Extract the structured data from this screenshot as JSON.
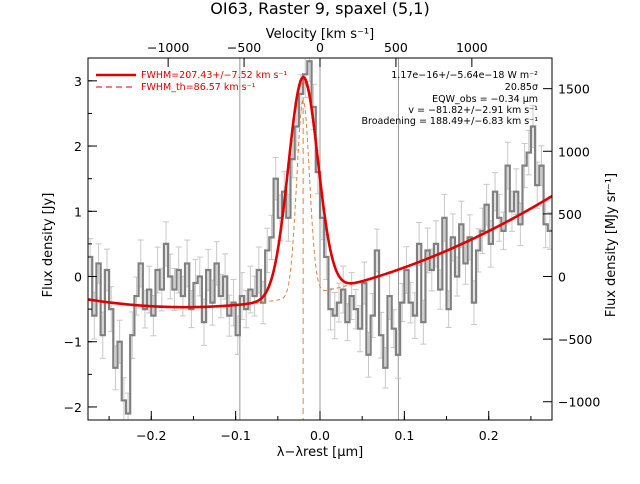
{
  "chart_data": {
    "type": "line",
    "title": "OI63, Raster 9, spaxel (5,1)",
    "xlabel": "λ−λrest [μm]",
    "ylabel": "Flux density [Jy]",
    "top_axis_label": "Velocity [km s⁻¹]",
    "right_axis_label": "Flux density [MJy sr⁻¹]",
    "xlim": [
      -0.275,
      0.275
    ],
    "ylim": [
      -2.2,
      3.35
    ],
    "x_ticks": [
      -0.2,
      -0.1,
      0.0,
      0.1,
      0.2
    ],
    "x_tick_labels": [
      "−0.2",
      "−0.1",
      "0.0",
      "0.1",
      "0.2"
    ],
    "y_ticks": [
      -2,
      -1,
      0,
      1,
      2,
      3
    ],
    "y_tick_labels": [
      "−2",
      "−1",
      "0",
      "1",
      "2",
      "3"
    ],
    "top_ticks": [
      -1000,
      -500,
      0,
      500,
      1000
    ],
    "top_tick_labels": [
      "−1000",
      "−500",
      "0",
      "500",
      "1000"
    ],
    "right_ticks": [
      -1000,
      -500,
      0,
      500,
      1000,
      1500
    ],
    "right_tick_labels": [
      "−1000",
      "−500",
      "0",
      "500",
      "1000",
      "1500"
    ],
    "vertical_lines_x": [
      -0.095,
      0.0,
      0.093
    ],
    "line_center_x": -0.02,
    "legend": {
      "position": "top-left",
      "entries": [
        {
          "label": "FWHM=207.43+/−7.52 km s⁻¹",
          "style": "solid",
          "color": "#e00000"
        },
        {
          "label": "FWHM_th=86.57 km s⁻¹",
          "style": "dashed",
          "color": "#e00000"
        }
      ]
    },
    "annotations": [
      "1.17e−16+/−5.64e−18 W m⁻²",
      "20.85σ",
      "EQW_obs = −0.34 μm",
      "v = −81.82+/−2.91 km s⁻¹",
      "Broadening = 188.49+/−6.83 km s⁻¹"
    ],
    "series": [
      {
        "name": "Spectrum",
        "color": "#888888",
        "x": [
          -0.275,
          -0.27,
          -0.265,
          -0.26,
          -0.255,
          -0.25,
          -0.245,
          -0.24,
          -0.235,
          -0.23,
          -0.225,
          -0.22,
          -0.215,
          -0.21,
          -0.205,
          -0.2,
          -0.195,
          -0.19,
          -0.185,
          -0.18,
          -0.175,
          -0.17,
          -0.165,
          -0.16,
          -0.155,
          -0.15,
          -0.145,
          -0.14,
          -0.135,
          -0.13,
          -0.125,
          -0.12,
          -0.115,
          -0.11,
          -0.105,
          -0.1,
          -0.095,
          -0.09,
          -0.085,
          -0.08,
          -0.075,
          -0.07,
          -0.065,
          -0.06,
          -0.055,
          -0.05,
          -0.045,
          -0.04,
          -0.035,
          -0.03,
          -0.025,
          -0.02,
          -0.015,
          -0.01,
          -0.005,
          0.0,
          0.005,
          0.01,
          0.015,
          0.02,
          0.025,
          0.03,
          0.035,
          0.04,
          0.045,
          0.05,
          0.055,
          0.06,
          0.065,
          0.07,
          0.075,
          0.08,
          0.085,
          0.09,
          0.095,
          0.1,
          0.105,
          0.11,
          0.115,
          0.12,
          0.125,
          0.13,
          0.135,
          0.14,
          0.145,
          0.15,
          0.155,
          0.16,
          0.165,
          0.17,
          0.175,
          0.18,
          0.185,
          0.19,
          0.195,
          0.2,
          0.205,
          0.21,
          0.215,
          0.22,
          0.225,
          0.23,
          0.235,
          0.24,
          0.245,
          0.25,
          0.255,
          0.26,
          0.265,
          0.27
        ],
        "y": [
          0.3,
          -0.6,
          0.2,
          -0.9,
          0.1,
          -0.5,
          -1.4,
          -1.0,
          -1.9,
          -2.1,
          -0.9,
          -0.3,
          0.2,
          -0.5,
          -0.2,
          -0.6,
          0.1,
          -0.2,
          0.5,
          0.0,
          -0.2,
          0.1,
          -0.3,
          0.2,
          -0.5,
          -0.1,
          0.0,
          -0.7,
          0.1,
          -0.4,
          0.2,
          -0.3,
          0.0,
          -0.6,
          -0.4,
          -0.9,
          -0.3,
          -0.5,
          -0.2,
          -0.3,
          0.1,
          -0.4,
          0.4,
          0.6,
          1.5,
          0.9,
          1.3,
          0.9,
          1.8,
          2.3,
          2.8,
          3.1,
          3.3,
          2.6,
          1.6,
          0.9,
          0.3,
          -0.5,
          -0.6,
          -0.4,
          -0.2,
          -0.7,
          -0.3,
          -0.5,
          -0.8,
          -0.1,
          -1.2,
          -0.6,
          0.4,
          -0.9,
          -1.4,
          -0.3,
          -0.8,
          -1.2,
          -0.4,
          0.1,
          -0.4,
          -0.6,
          0.5,
          -0.7,
          0.4,
          0.1,
          0.5,
          -0.2,
          0.9,
          -0.5,
          0.6,
          0.0,
          0.8,
          0.2,
          0.6,
          -0.4,
          0.4,
          0.7,
          1.1,
          0.5,
          1.3,
          0.9,
          0.7,
          1.7,
          1.0,
          1.3,
          0.8,
          1.7,
          1.9,
          2.3,
          1.4,
          1.7,
          0.8,
          0.7
        ]
      },
      {
        "name": "Fit",
        "color": "#e00000",
        "style": "solid"
      }
    ]
  }
}
